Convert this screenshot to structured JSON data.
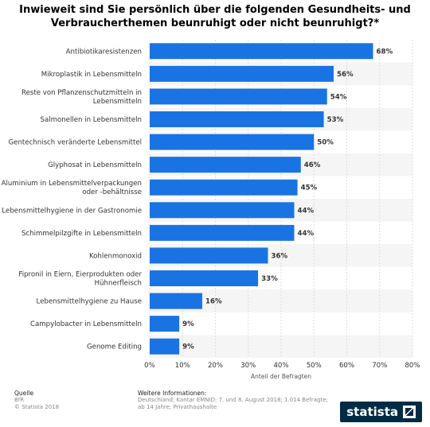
{
  "title": "Inwieweit sind Sie persönlich über die folgenden Gesundheits- und Verbraucherthemen beunruhigt oder nicht beunruhigt?*",
  "chart_data": {
    "type": "bar",
    "orientation": "horizontal",
    "categories": [
      "Antibiotikaresistenzen",
      "Mikroplastik in Lebensmitteln",
      "Reste von Pflanzenschutzmitteln in Lebensmitteln",
      "Salmonellen in Lebensmitteln",
      "Gentechnisch veränderte Lebensmittel",
      "Glyphosat in Lebensmitteln",
      "Aluminium in Lebensmittelverpackungen oder -behältnisse",
      "Lebensmittelhygiene in der Gastronomie",
      "Schimmelpilzgifte in Lebensmitteln",
      "Kohlenmonoxid",
      "Fipronil in Eiern, Eierprodukten oder Hühnerfleisch",
      "Lebensmittelhygiene zu Hause",
      "Campylobacter in Lebensmitteln",
      "Genome Editing"
    ],
    "category_lines": [
      [
        "Antibiotikaresistenzen"
      ],
      [
        "Mikroplastik in Lebensmitteln"
      ],
      [
        "Reste von Pflanzenschutzmitteln in",
        "Lebensmitteln"
      ],
      [
        "Salmonellen in Lebensmitteln"
      ],
      [
        "Gentechnisch veränderte Lebensmittel"
      ],
      [
        "Glyphosat in Lebensmitteln"
      ],
      [
        "Aluminium in Lebensmittelverpackungen",
        "oder -behältnisse"
      ],
      [
        "Lebensmittelhygiene in der Gastronomie"
      ],
      [
        "Schimmelpilzgifte in Lebensmitteln"
      ],
      [
        "Kohlenmonoxid"
      ],
      [
        "Fipronil in Eiern, Eierprodukten oder",
        "Hühnerfleisch"
      ],
      [
        "Lebensmittelhygiene zu Hause"
      ],
      [
        "Campylobacter in Lebensmitteln"
      ],
      [
        "Genome Editing"
      ]
    ],
    "values": [
      68,
      56,
      54,
      53,
      50,
      46,
      45,
      44,
      44,
      36,
      33,
      16,
      9,
      9
    ],
    "value_suffix": "%",
    "xlim": [
      0,
      80
    ],
    "ticks": [
      0,
      10,
      20,
      30,
      40,
      50,
      60,
      70,
      80
    ],
    "tick_labels": [
      "0%",
      "10%",
      "20%",
      "30%",
      "40%",
      "50%",
      "60%",
      "70%",
      "80%"
    ],
    "xlabel": "Anteil der Befragten",
    "grid": true,
    "bar_color": "#1a73e3"
  },
  "footer": {
    "source_heading": "Quelle",
    "source_lines": [
      "BfR",
      "© Statista 2018"
    ],
    "info_heading": "Weitere Informationen:",
    "info_lines": [
      "Deutschland; Kantar EMNID; 7. und 8. August 2018; 1.014 Befragte;",
      "ab 14 Jahre; Privathaushalte"
    ],
    "brand": "statista"
  }
}
